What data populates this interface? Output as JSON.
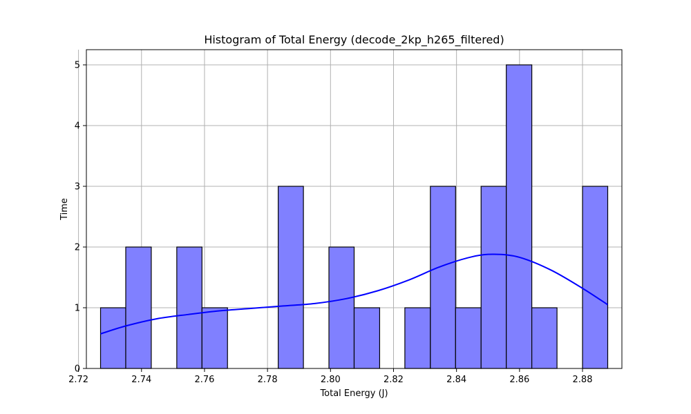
{
  "chart_data": {
    "type": "bar",
    "title": "Histogram of Total Energy (decode_2kp_h265_filtered)",
    "xlabel": "Total Energy (J)",
    "ylabel": "Time",
    "xlim": [
      2.7225,
      2.8925
    ],
    "ylim": [
      0,
      5.25
    ],
    "xticks": [
      2.72,
      2.74,
      2.76,
      2.78,
      2.8,
      2.82,
      2.84,
      2.86,
      2.88
    ],
    "xtick_labels": [
      "2.72",
      "2.74",
      "2.76",
      "2.78",
      "2.80",
      "2.82",
      "2.84",
      "2.86",
      "2.88"
    ],
    "yticks": [
      0,
      1,
      2,
      3,
      4,
      5
    ],
    "ytick_labels": [
      "0",
      "1",
      "2",
      "3",
      "4",
      "5"
    ],
    "grid": true,
    "colors": {
      "bar_fill": "#8080ff",
      "bar_edge": "#000000",
      "kde": "#0000ff"
    },
    "bins": [
      {
        "x0": 2.727,
        "x1": 2.735,
        "count": 1
      },
      {
        "x0": 2.735,
        "x1": 2.7431,
        "count": 2
      },
      {
        "x0": 2.7431,
        "x1": 2.7512,
        "count": 0
      },
      {
        "x0": 2.7512,
        "x1": 2.7592,
        "count": 2
      },
      {
        "x0": 2.7592,
        "x1": 2.7673,
        "count": 1
      },
      {
        "x0": 2.7673,
        "x1": 2.7753,
        "count": 0
      },
      {
        "x0": 2.7753,
        "x1": 2.7834,
        "count": 0
      },
      {
        "x0": 2.7834,
        "x1": 2.7914,
        "count": 3
      },
      {
        "x0": 2.7914,
        "x1": 2.7995,
        "count": 0
      },
      {
        "x0": 2.7995,
        "x1": 2.8075,
        "count": 2
      },
      {
        "x0": 2.8075,
        "x1": 2.8156,
        "count": 1
      },
      {
        "x0": 2.8156,
        "x1": 2.8236,
        "count": 0
      },
      {
        "x0": 2.8236,
        "x1": 2.8317,
        "count": 1
      },
      {
        "x0": 2.8317,
        "x1": 2.8397,
        "count": 3
      },
      {
        "x0": 2.8397,
        "x1": 2.8478,
        "count": 1
      },
      {
        "x0": 2.8478,
        "x1": 2.8558,
        "count": 3
      },
      {
        "x0": 2.8558,
        "x1": 2.8639,
        "count": 5
      },
      {
        "x0": 2.8639,
        "x1": 2.8719,
        "count": 1
      },
      {
        "x0": 2.8719,
        "x1": 2.88,
        "count": 0
      },
      {
        "x0": 2.88,
        "x1": 2.888,
        "count": 3
      }
    ],
    "kde": {
      "x": [
        2.727,
        2.735,
        2.745,
        2.755,
        2.765,
        2.775,
        2.785,
        2.795,
        2.805,
        2.815,
        2.825,
        2.835,
        2.845,
        2.852,
        2.86,
        2.87,
        2.88,
        2.888
      ],
      "y": [
        0.57,
        0.7,
        0.82,
        0.89,
        0.95,
        0.99,
        1.03,
        1.07,
        1.15,
        1.28,
        1.46,
        1.68,
        1.84,
        1.88,
        1.83,
        1.62,
        1.32,
        1.05
      ]
    }
  }
}
